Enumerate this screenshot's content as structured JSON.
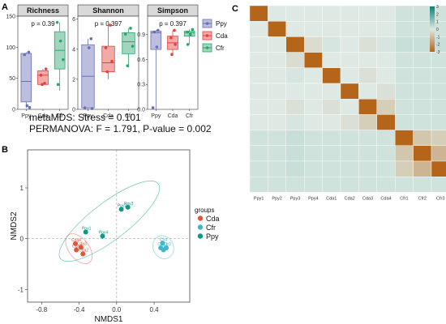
{
  "panels": {
    "A": "A",
    "B": "B",
    "C": "C"
  },
  "colors": {
    "Ppy": "#6b6fb5",
    "Cda": "#e5413c",
    "Cfr": "#2ea36f",
    "Cfr_nmds": "#3fb7c9",
    "Ppy_nmds": "#0a9b86",
    "Cda_nmds": "#e0563a",
    "heat_pos": "#0c7f79",
    "heat_neg": "#b5651a",
    "heat_mid": "#dde9e2"
  },
  "chart_data": [
    {
      "type": "box",
      "title": "Richness",
      "annotation": "p = 0.39",
      "categories": [
        "Ppy",
        "Cda",
        "Cfr"
      ],
      "ylim": [
        0,
        150
      ],
      "yticks": [
        "0",
        "50",
        "100",
        "150"
      ],
      "boxes": [
        {
          "group": "Ppy",
          "min": 2,
          "q1": 12,
          "median": 45,
          "q3": 90,
          "max": 92
        },
        {
          "group": "Cda",
          "min": 38,
          "q1": 40,
          "median": 55,
          "q3": 62,
          "max": 65
        },
        {
          "group": "Cfr",
          "min": 30,
          "q1": 65,
          "median": 95,
          "q3": 125,
          "max": 140
        }
      ],
      "points": [
        {
          "group": "Ppy",
          "y": 92,
          "jitter": 0.15
        },
        {
          "group": "Ppy",
          "y": 88,
          "jitter": -0.1
        },
        {
          "group": "Ppy",
          "y": 6,
          "jitter": 0.05
        },
        {
          "group": "Ppy",
          "y": 3,
          "jitter": 0.2
        },
        {
          "group": "Cda",
          "y": 65,
          "jitter": 0.18
        },
        {
          "group": "Cda",
          "y": 55,
          "jitter": -0.12
        },
        {
          "group": "Cda",
          "y": 42,
          "jitter": 0.1
        },
        {
          "group": "Cda",
          "y": 40,
          "jitter": -0.05
        },
        {
          "group": "Cfr",
          "y": 140,
          "jitter": -0.15
        },
        {
          "group": "Cfr",
          "y": 110,
          "jitter": 0.05
        },
        {
          "group": "Cfr",
          "y": 80,
          "jitter": 0.2
        },
        {
          "group": "Cfr",
          "y": 40,
          "jitter": -0.1
        }
      ]
    },
    {
      "type": "box",
      "title": "Shannon",
      "annotation": "p = 0.397",
      "categories": [
        "Ppy",
        "Cda",
        "Cfr"
      ],
      "ylim": [
        0,
        6.2
      ],
      "yticks": [
        "0",
        "2",
        "4",
        "6"
      ],
      "boxes": [
        {
          "group": "Ppy",
          "min": 0,
          "q1": 0.1,
          "median": 2.2,
          "q3": 4.3,
          "max": 4.7
        },
        {
          "group": "Cda",
          "min": 2.0,
          "q1": 2.5,
          "median": 3.1,
          "q3": 4.2,
          "max": 5.6
        },
        {
          "group": "Cfr",
          "min": 2.8,
          "q1": 3.7,
          "median": 4.5,
          "q3": 5.1,
          "max": 5.4
        }
      ],
      "points": [
        {
          "group": "Ppy",
          "y": 4.7,
          "jitter": 0.15
        },
        {
          "group": "Ppy",
          "y": 4.1,
          "jitter": 0.05
        },
        {
          "group": "Ppy",
          "y": 0.1,
          "jitter": -0.15
        },
        {
          "group": "Ppy",
          "y": 0.05,
          "jitter": 0.2
        },
        {
          "group": "Cda",
          "y": 5.6,
          "jitter": 0.1
        },
        {
          "group": "Cda",
          "y": 4.1,
          "jitter": -0.12
        },
        {
          "group": "Cda",
          "y": 3.2,
          "jitter": 0.18
        },
        {
          "group": "Cda",
          "y": 2.5,
          "jitter": -0.05
        },
        {
          "group": "Cfr",
          "y": 5.4,
          "jitter": 0.1
        },
        {
          "group": "Cfr",
          "y": 5.0,
          "jitter": -0.15
        },
        {
          "group": "Cfr",
          "y": 4.2,
          "jitter": 0.2
        },
        {
          "group": "Cfr",
          "y": 2.9,
          "jitter": -0.05
        }
      ]
    },
    {
      "type": "box",
      "title": "Simpson",
      "annotation": "p = 0.397",
      "categories": [
        "Ppy",
        "Cda",
        "Cfr"
      ],
      "ylim": [
        0,
        1.12
      ],
      "yticks": [
        "0.0",
        "0.3",
        "0.6",
        "0.9"
      ],
      "boxes": [
        {
          "group": "Ppy",
          "min": 0.0,
          "q1": 0.72,
          "median": 0.92,
          "q3": 0.94,
          "max": 0.95
        },
        {
          "group": "Cda",
          "min": 0.65,
          "q1": 0.72,
          "median": 0.8,
          "q3": 0.88,
          "max": 0.95
        },
        {
          "group": "Cfr",
          "min": 0.78,
          "q1": 0.88,
          "median": 0.92,
          "q3": 0.94,
          "max": 0.96
        }
      ],
      "points": [
        {
          "group": "Ppy",
          "y": 0.95,
          "jitter": 0.12
        },
        {
          "group": "Ppy",
          "y": 0.93,
          "jitter": -0.1
        },
        {
          "group": "Ppy",
          "y": 0.75,
          "jitter": 0.05
        },
        {
          "group": "Ppy",
          "y": 0.02,
          "jitter": -0.18
        },
        {
          "group": "Cda",
          "y": 0.95,
          "jitter": 0.1
        },
        {
          "group": "Cda",
          "y": 0.86,
          "jitter": -0.1
        },
        {
          "group": "Cda",
          "y": 0.78,
          "jitter": 0.15
        },
        {
          "group": "Cda",
          "y": 0.66,
          "jitter": -0.05
        },
        {
          "group": "Cfr",
          "y": 0.96,
          "jitter": 0.18
        },
        {
          "group": "Cfr",
          "y": 0.93,
          "jitter": -0.12
        },
        {
          "group": "Cfr",
          "y": 0.9,
          "jitter": 0.05
        },
        {
          "group": "Cfr",
          "y": 0.78,
          "jitter": -0.1
        }
      ]
    },
    {
      "type": "scatter",
      "title_line1": "metaMDS: Stress = 0.101",
      "title_line2": "PERMANOVA: F = 1.791, P-value = 0.002",
      "xlabel": "NMDS1",
      "ylabel": "NMDS2",
      "xlim": [
        -0.95,
        0.78
      ],
      "ylim": [
        -1.25,
        1.75
      ],
      "xticks": [
        -0.8,
        -0.4,
        0,
        0.4
      ],
      "xtick_labels": [
        "-0.8",
        "-0.4",
        "0.0",
        "0.4"
      ],
      "yticks": [
        -1,
        0,
        1
      ],
      "ytick_labels": [
        "-1",
        "0",
        "1"
      ],
      "legend_title": "groups",
      "legend": [
        "Cda",
        "Cfr",
        "Ppy"
      ],
      "points": [
        {
          "label": "Ppy1",
          "group": "Ppy",
          "x": -0.33,
          "y": 0.13
        },
        {
          "label": "Ppy2",
          "group": "Ppy",
          "x": 0.05,
          "y": 0.58
        },
        {
          "label": "Ppy3",
          "group": "Ppy",
          "x": 0.12,
          "y": 0.62
        },
        {
          "label": "Ppy4",
          "group": "Ppy",
          "x": -0.15,
          "y": 0.05
        },
        {
          "label": "Cda1",
          "group": "Cda",
          "x": -0.43,
          "y": -0.22
        },
        {
          "label": "Cda2",
          "group": "Cda",
          "x": -0.36,
          "y": -0.3
        },
        {
          "label": "Cda3",
          "group": "Cda",
          "x": -0.38,
          "y": -0.17
        },
        {
          "label": "Cda4",
          "group": "Cda",
          "x": -0.44,
          "y": -0.1
        },
        {
          "label": "Cfr1",
          "group": "Cfr",
          "x": 0.47,
          "y": -0.18
        },
        {
          "label": "Cfr2",
          "group": "Cfr",
          "x": 0.5,
          "y": -0.22
        },
        {
          "label": "Cfr3",
          "group": "Cfr",
          "x": 0.53,
          "y": -0.18
        },
        {
          "label": "Cfr4",
          "group": "Cfr",
          "x": 0.49,
          "y": -0.09
        }
      ]
    },
    {
      "type": "heatmap",
      "labels": [
        "Ppy1",
        "Ppy2",
        "Ppy3",
        "Ppy4",
        "Cda1",
        "Cda2",
        "Cda3",
        "Cda4",
        "Cfr1",
        "Cfr2",
        "Cfr3",
        "Cfr4"
      ],
      "colorbar_ticks": [
        "3",
        "2",
        "1",
        "0",
        "-1",
        "-2",
        "-3"
      ],
      "colorbar_range": [
        -3,
        3
      ],
      "values": [
        [
          -3,
          0,
          0,
          0,
          0,
          0,
          0,
          0,
          0.2,
          0.2,
          0.2,
          0.2
        ],
        [
          0,
          -3,
          0,
          0,
          0,
          0,
          0,
          0,
          0.2,
          0.2,
          0.2,
          0.2
        ],
        [
          0,
          0,
          -3,
          -0.3,
          0.1,
          0,
          -0.2,
          0.1,
          0.3,
          0.3,
          0.3,
          0.2
        ],
        [
          0,
          0,
          -0.3,
          -3,
          0,
          0,
          0,
          0,
          0.2,
          0.2,
          0.2,
          0.2
        ],
        [
          0,
          0,
          0.1,
          0,
          -3,
          0,
          -0.2,
          0,
          0.2,
          0.2,
          0.2,
          0.2
        ],
        [
          0,
          0,
          0,
          0,
          0,
          -3,
          0,
          -0.2,
          0.2,
          0.2,
          0.2,
          0.2
        ],
        [
          0,
          0,
          -0.2,
          0,
          -0.2,
          0,
          -3,
          -0.6,
          0.2,
          0.2,
          0.2,
          0.2
        ],
        [
          0,
          0,
          0.1,
          0,
          0,
          -0.2,
          -0.6,
          -3,
          0.2,
          0.2,
          0.2,
          0.2
        ],
        [
          0.2,
          0.2,
          0.3,
          0.2,
          0.2,
          0.2,
          0.2,
          0.2,
          -3,
          -0.8,
          -0.6,
          0.2
        ],
        [
          0.2,
          0.2,
          0.3,
          0.2,
          0.2,
          0.2,
          0.2,
          0.2,
          -0.8,
          -3,
          -1.2,
          0.2
        ],
        [
          0.2,
          0.2,
          0.3,
          0.2,
          0.2,
          0.2,
          0.2,
          0.2,
          -0.6,
          -1.2,
          -3,
          0.2
        ],
        [
          0.2,
          0.2,
          0.2,
          0.2,
          0.2,
          0.2,
          0.2,
          0.2,
          0.2,
          0.2,
          0.2,
          -3
        ]
      ]
    }
  ]
}
